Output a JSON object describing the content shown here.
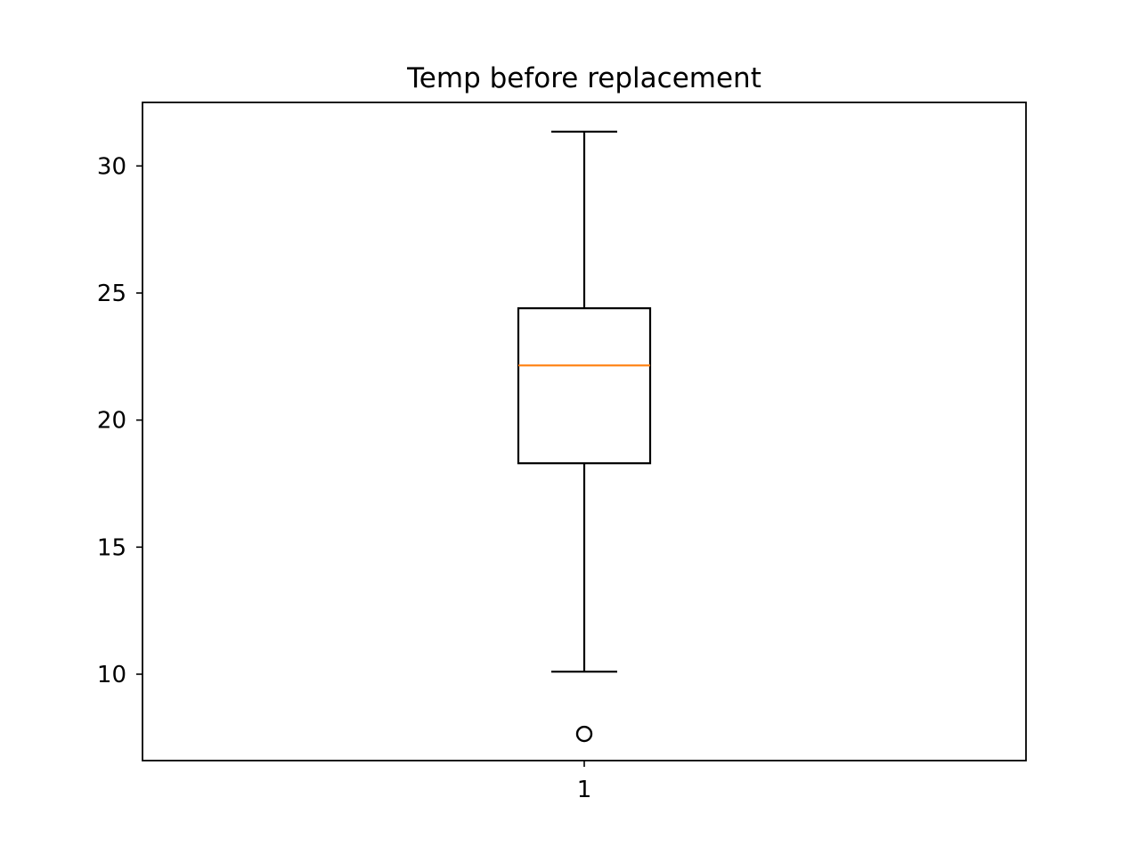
{
  "chart_data": {
    "type": "box",
    "title": "Temp before replacement",
    "xlabel": "",
    "ylabel": "",
    "categories": [
      "1"
    ],
    "ylim": [
      6.6,
      32.5
    ],
    "yticks": [
      10,
      15,
      20,
      25,
      30
    ],
    "ytick_labels": [
      "10",
      "15",
      "20",
      "25",
      "30"
    ],
    "grid": false,
    "boxes": [
      {
        "category": "1",
        "whisker_low": 10.1,
        "q1": 18.3,
        "median": 22.15,
        "q3": 24.4,
        "whisker_high": 31.35,
        "outliers": [
          7.65
        ]
      }
    ],
    "colors": {
      "box": "#000000",
      "median": "#ff7f0e",
      "outlier": "#000000"
    }
  }
}
